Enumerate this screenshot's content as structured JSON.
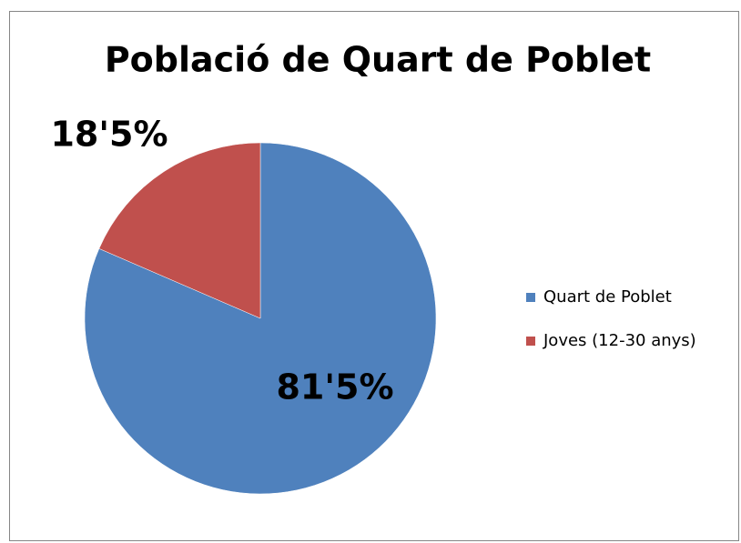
{
  "chart_data": {
    "type": "pie",
    "title": "Població de Quart de Poblet",
    "categories": [
      "Quart de Poblet",
      "Joves (12-30 anys)"
    ],
    "values": [
      81.5,
      18.5
    ],
    "value_labels": [
      "81'5%",
      "18'5%"
    ],
    "colors": [
      "#4f81bd",
      "#c0504d"
    ],
    "legend": "right"
  }
}
